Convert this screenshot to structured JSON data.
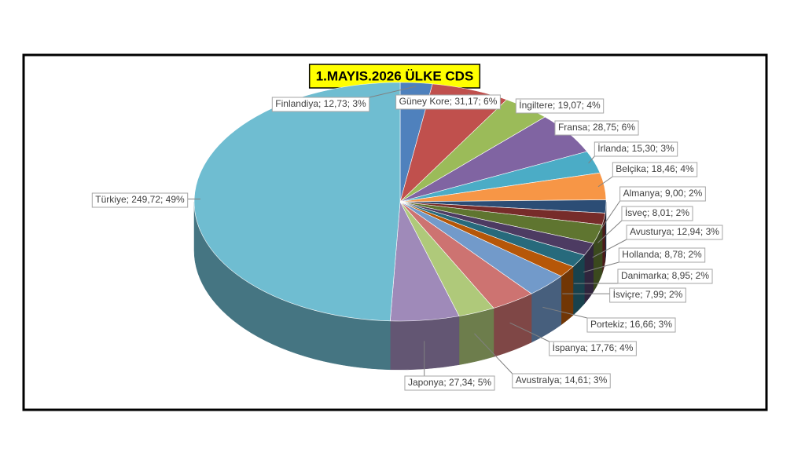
{
  "chart_data": {
    "type": "pie",
    "title": "1.MAYIS.2026 ÜLKE CDS",
    "values": [
      12.73,
      31.17,
      19.07,
      28.75,
      15.3,
      18.46,
      9.0,
      8.01,
      12.94,
      8.78,
      8.95,
      7.99,
      16.66,
      17.76,
      14.61,
      27.34,
      249.72
    ],
    "value_labels": [
      "Finlandiya; 12,73; 3%",
      "Güney Kore; 31,17; 6%",
      "İngiltere; 19,07; 4%",
      "Fransa; 28,75; 6%",
      "İrlanda; 15,30; 3%",
      "Belçika; 18,46; 4%",
      "Almanya; 9,00; 2%",
      "İsveç; 8,01; 2%",
      "Avusturya; 12,94; 3%",
      "Hollanda; 8,78; 2%",
      "Danimarka; 8,95; 2%",
      "İsviçre; 7,99; 2%",
      "Portekiz; 16,66; 3%",
      "İspanya; 17,76; 4%",
      "Avustralya; 14,61; 3%",
      "Japonya; 27,34; 5%",
      "Türkiye; 249,72; 49%"
    ],
    "colors": [
      "#4F81BD",
      "#C0504D",
      "#9BBB59",
      "#8064A2",
      "#4BACC6",
      "#F79646",
      "#2C4D75",
      "#772C2A",
      "#5F7530",
      "#4D3B62",
      "#276A7C",
      "#B65708",
      "#729ACA",
      "#CD7371",
      "#AFC97A",
      "#9F8AB9",
      "#6FBDD1"
    ]
  }
}
